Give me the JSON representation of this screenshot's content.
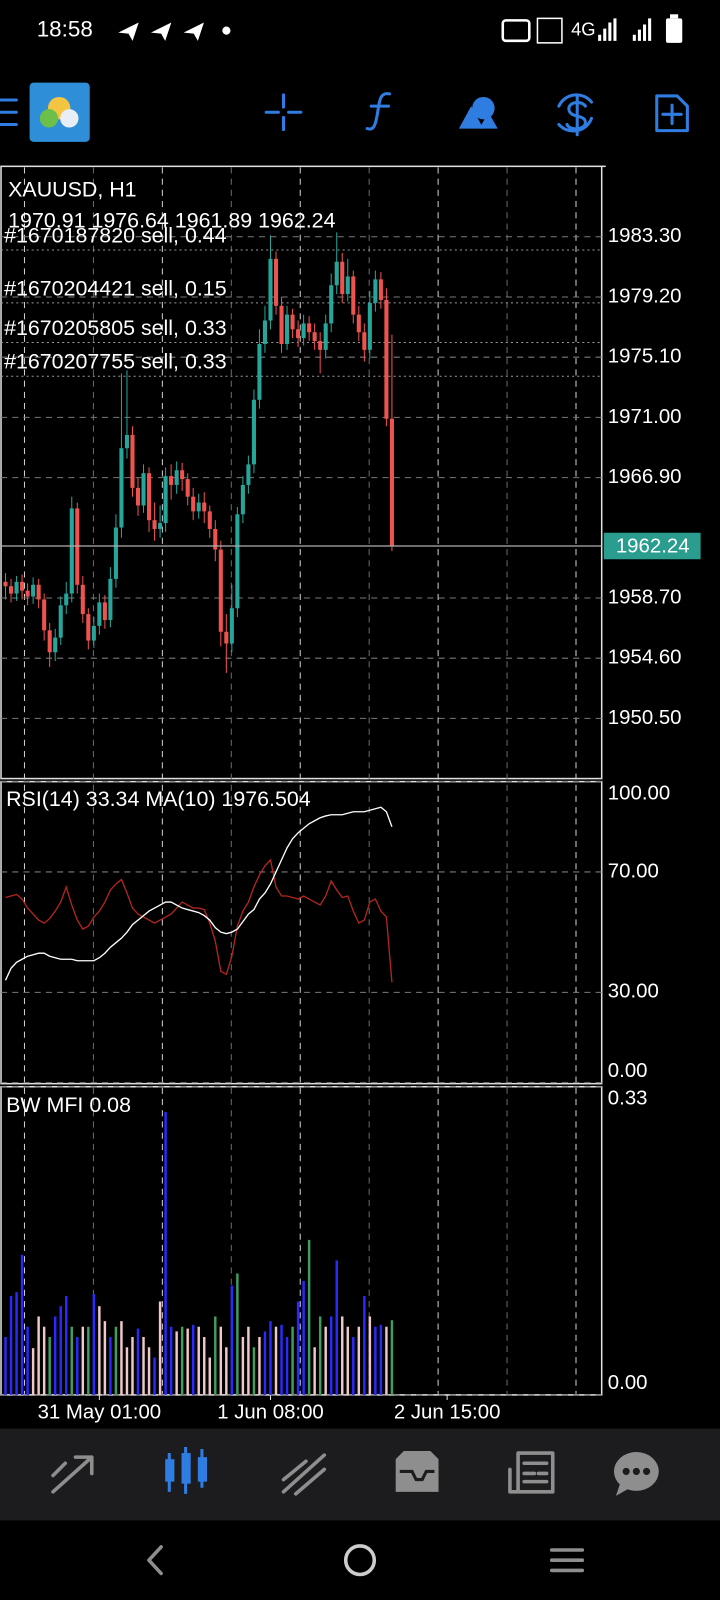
{
  "status_bar": {
    "time": "18:58",
    "network": "4G"
  },
  "chart_data": [
    {
      "type": "candlestick",
      "symbol": "XAUUSD, H1",
      "up_color": "#26a69a",
      "down_color": "#ef5350",
      "grid": true,
      "xlim": [
        -1,
        108
      ],
      "xticks": [
        {
          "value": 17,
          "label": "31 May 01:00"
        },
        {
          "value": 48,
          "label": "1 Jun 08:00"
        },
        {
          "value": 80,
          "label": "2 Jun 15:00"
        }
      ],
      "ylim": [
        1946.4,
        1988.1
      ],
      "yticks": [
        {
          "value": 1983.3,
          "label": "1983.30"
        },
        {
          "value": 1979.2,
          "label": "1979.20"
        },
        {
          "value": 1975.1,
          "label": "1975.10"
        },
        {
          "value": 1971,
          "label": "1971.00"
        },
        {
          "value": 1966.9,
          "label": "1966.90"
        },
        {
          "value": 1958.7,
          "label": "1958.70"
        },
        {
          "value": 1954.6,
          "label": "1954.60"
        },
        {
          "value": 1950.5,
          "label": "1950.50"
        }
      ],
      "orders": [
        {
          "label": "#1670187820 sell, 0.44",
          "price": 1982.4
        },
        {
          "label": "#1670204421 sell, 0.15",
          "price": 1978.8
        },
        {
          "label": "#1670205805 sell, 0.33",
          "price": 1976.1
        },
        {
          "label": "#1670207755 sell, 0.33",
          "price": 1973.8
        }
      ],
      "open": [
        1959.8,
        1959.5,
        1959.0,
        1959.8,
        1959.2,
        1958.8,
        1959.6,
        1958.6,
        1956.5,
        1955.0,
        1956.0,
        1958.2,
        1959.0,
        1964.8,
        1959.6,
        1957.6,
        1955.8,
        1956.8,
        1958.4,
        1957.2,
        1960.0,
        1963.5,
        1968.9,
        1969.8,
        1966.2,
        1965.0,
        1967.2,
        1964.0,
        1963.4,
        1963.8,
        1967.0,
        1966.4,
        1967.4,
        1966.8,
        1965.6,
        1964.6,
        1965.2,
        1964.6,
        1963.4,
        1962.0,
        1956.4,
        1955.6,
        1958.0,
        1964.4,
        1966.4,
        1967.8,
        1972.2,
        1976.0,
        1977.6,
        1981.8,
        1978.6,
        1976.0,
        1978.0,
        1977.0,
        1976.4,
        1977.4,
        1976.8,
        1976.2,
        1975.6,
        1977.4,
        1980.0,
        1981.6,
        1979.4,
        1980.6,
        1978.0,
        1976.8,
        1975.6,
        1978.8,
        1980.4,
        1979.0,
        1970.91
      ],
      "high": [
        1960.4,
        1960.0,
        1960.2,
        1960.3,
        1959.7,
        1960.1,
        1960.0,
        1959.0,
        1957.0,
        1956.6,
        1958.8,
        1959.8,
        1965.6,
        1965.2,
        1960.2,
        1958.0,
        1957.4,
        1959.0,
        1958.9,
        1960.8,
        1964.4,
        1974.0,
        1974.2,
        1970.4,
        1966.9,
        1967.8,
        1967.6,
        1965.2,
        1965.0,
        1967.6,
        1967.8,
        1968.0,
        1967.9,
        1967.2,
        1966.2,
        1965.8,
        1965.9,
        1965.0,
        1964.0,
        1962.6,
        1957.6,
        1959.6,
        1964.9,
        1967.0,
        1968.4,
        1972.9,
        1977.0,
        1978.6,
        1983.4,
        1982.3,
        1979.2,
        1978.6,
        1978.4,
        1977.6,
        1978.0,
        1977.9,
        1977.4,
        1976.8,
        1978.0,
        1980.8,
        1983.6,
        1982.2,
        1981.8,
        1981.0,
        1978.6,
        1977.4,
        1979.6,
        1981.0,
        1980.9,
        1979.8,
        1976.64
      ],
      "low": [
        1958.6,
        1958.4,
        1958.5,
        1958.6,
        1958.2,
        1958.3,
        1958.0,
        1955.8,
        1954.0,
        1954.4,
        1955.5,
        1957.6,
        1958.4,
        1959.0,
        1957.0,
        1955.2,
        1955.3,
        1956.2,
        1956.6,
        1956.7,
        1959.4,
        1962.8,
        1968.2,
        1965.6,
        1964.3,
        1964.5,
        1963.2,
        1962.6,
        1962.8,
        1963.2,
        1965.4,
        1965.8,
        1966.0,
        1965.0,
        1964.0,
        1964.1,
        1963.8,
        1962.8,
        1961.2,
        1955.4,
        1953.6,
        1955.0,
        1957.4,
        1963.8,
        1965.8,
        1967.2,
        1971.6,
        1975.4,
        1977.0,
        1978.0,
        1975.4,
        1975.6,
        1976.4,
        1975.8,
        1975.9,
        1976.2,
        1975.6,
        1974.0,
        1975.0,
        1976.8,
        1979.4,
        1978.8,
        1978.9,
        1977.4,
        1976.2,
        1974.8,
        1975.0,
        1978.2,
        1978.4,
        1970.4,
        1961.89
      ],
      "close": [
        1959.5,
        1959.0,
        1959.8,
        1959.2,
        1958.8,
        1959.6,
        1958.6,
        1956.5,
        1955.0,
        1956.0,
        1958.2,
        1959.0,
        1964.8,
        1959.6,
        1957.6,
        1955.8,
        1956.8,
        1958.4,
        1957.2,
        1960.0,
        1963.5,
        1968.9,
        1969.8,
        1966.2,
        1965.0,
        1967.2,
        1964.0,
        1963.4,
        1963.8,
        1967.0,
        1966.4,
        1967.4,
        1966.8,
        1965.6,
        1964.6,
        1965.2,
        1964.6,
        1963.4,
        1962.0,
        1956.4,
        1955.6,
        1958.0,
        1964.4,
        1966.4,
        1967.8,
        1972.2,
        1976.0,
        1977.6,
        1981.8,
        1978.6,
        1976.0,
        1978.0,
        1977.0,
        1976.4,
        1977.4,
        1976.8,
        1976.2,
        1975.6,
        1977.4,
        1980.0,
        1981.6,
        1979.4,
        1980.6,
        1978.0,
        1976.8,
        1975.6,
        1978.8,
        1980.4,
        1979.0,
        1970.91,
        1962.24
      ]
    },
    {
      "type": "line",
      "ylim": [
        0,
        100
      ],
      "yticks": [
        {
          "value": 100,
          "label": "100.00"
        },
        {
          "value": 70,
          "label": "70.00"
        },
        {
          "value": 30,
          "label": "30.00"
        },
        {
          "value": 0,
          "label": "0.00"
        }
      ],
      "series": [
        {
          "name": "RSI(14)",
          "color": "#b3261e",
          "values": [
            61.5,
            62,
            62.5,
            61,
            58,
            56,
            54,
            53,
            54.5,
            57,
            60,
            65,
            59,
            54,
            51,
            52,
            55,
            57,
            60,
            64,
            66,
            67.5,
            63,
            58,
            56,
            55,
            54,
            53,
            54,
            55,
            56,
            58,
            60,
            59,
            58,
            58,
            57.5,
            53,
            47,
            37,
            36,
            42,
            52,
            57,
            60,
            65,
            69,
            72,
            74,
            65,
            62,
            62,
            61.5,
            61,
            62,
            61,
            60,
            59,
            62,
            67,
            64,
            61.5,
            62,
            57,
            53,
            54,
            60,
            61,
            57,
            55,
            33.34
          ]
        },
        {
          "name": "MA(10)",
          "color": "#ffffff",
          "reading": 1976.504,
          "values": [
            34,
            38,
            40,
            41,
            42,
            42.5,
            43,
            43,
            42,
            41.5,
            41,
            41,
            41,
            40.5,
            40.5,
            40.5,
            40.5,
            41.5,
            43,
            45,
            46.5,
            48,
            50,
            52.5,
            54,
            55.5,
            57,
            58,
            59,
            60,
            60,
            59,
            58,
            57.5,
            57,
            56.5,
            55.5,
            54,
            51.5,
            50,
            49.5,
            50,
            51,
            53.5,
            56,
            57.5,
            61,
            63,
            66,
            70,
            74,
            78,
            81,
            83,
            84.5,
            86,
            87,
            88,
            88.6,
            89,
            89,
            89,
            89.5,
            90,
            90,
            90,
            90.5,
            91,
            91.5,
            90,
            85
          ]
        }
      ]
    },
    {
      "type": "bar",
      "name": "BW MFI",
      "ylim": [
        0,
        0.33
      ],
      "yticks": [
        {
          "value": 0.33,
          "label": "0.33"
        },
        {
          "value": 0,
          "label": "0.00"
        }
      ],
      "values": [
        0.062,
        0.106,
        0.11,
        0.15,
        0.073,
        0.05,
        0.084,
        0.073,
        0.062,
        0.084,
        0.095,
        0.106,
        0.073,
        0.062,
        0.073,
        0.073,
        0.108,
        0.095,
        0.079,
        0.062,
        0.073,
        0.079,
        0.051,
        0.062,
        0.071,
        0.062,
        0.051,
        0.04,
        0.1,
        0.303,
        0.073,
        0.068,
        0.073,
        0.071,
        0.075,
        0.073,
        0.062,
        0.04,
        0.084,
        0.073,
        0.051,
        0.117,
        0.13,
        0.062,
        0.073,
        0.051,
        0.062,
        0.068,
        0.079,
        0.073,
        0.075,
        0.062,
        0.073,
        0.1,
        0.122,
        0.166,
        0.051,
        0.084,
        0.073,
        0.084,
        0.144,
        0.084,
        0.073,
        0.062,
        0.073,
        0.106,
        0.084,
        0.073,
        0.075,
        0.073,
        0.08
      ],
      "colors": [
        "#2a2aff",
        "#2a2aff",
        "#2a2aff",
        "#2a2aff",
        "#2a2aff",
        "#f0c8c8",
        "#f0c8c8",
        "#f0c8c8",
        "#3f9f5f",
        "#2a2aff",
        "#2a2aff",
        "#2a2aff",
        "#3f9f5f",
        "#2a2aff",
        "#f0c8c8",
        "#3f9f5f",
        "#2a2aff",
        "#f0c8c8",
        "#f0c8c8",
        "#2a2aff",
        "#3f9f5f",
        "#f0c8c8",
        "#f0c8c8",
        "#f0c8c8",
        "#2a2aff",
        "#f0c8c8",
        "#f0c8c8",
        "#2a2aff",
        "#f0c8c8",
        "#2a2aff",
        "#2a2aff",
        "#f0c8c8",
        "#3f9f5f",
        "#f0c8c8",
        "#2a2aff",
        "#f0c8c8",
        "#f0c8c8",
        "#f0c8c8",
        "#3f9f5f",
        "#f0c8c8",
        "#f0c8c8",
        "#2a2aff",
        "#3f9f5f",
        "#f0c8c8",
        "#f0c8c8",
        "#3f9f5f",
        "#f0c8c8",
        "#2a2aff",
        "#2a2aff",
        "#f0c8c8",
        "#2a2aff",
        "#2a2aff",
        "#3f9f5f",
        "#2a2aff",
        "#2a2aff",
        "#3f9f5f",
        "#f0c8c8",
        "#3f9f5f",
        "#f0c8c8",
        "#2a2aff",
        "#2a2aff",
        "#f0c8c8",
        "#f0c8c8",
        "#2a2aff",
        "#f0c8c8",
        "#2a2aff",
        "#f0c8c8",
        "#2a2aff",
        "#2a2aff",
        "#f0c8c8",
        "#3f9f5f"
      ]
    }
  ]
}
